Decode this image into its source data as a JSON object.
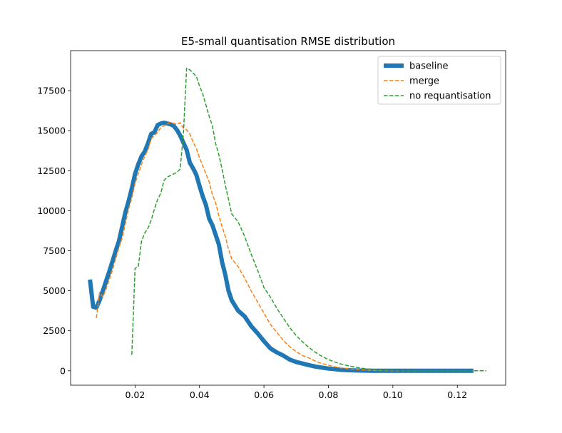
{
  "chart_data": {
    "type": "line",
    "title": "E5-small quantisation RMSE distribution",
    "xlabel": "",
    "ylabel": "",
    "xlim": [
      0.0,
      0.135
    ],
    "ylim": [
      -900,
      20000
    ],
    "xticks": [
      0.02,
      0.04,
      0.06,
      0.08,
      0.1,
      0.12
    ],
    "xtick_labels": [
      "0.02",
      "0.04",
      "0.06",
      "0.08",
      "0.10",
      "0.12"
    ],
    "yticks": [
      0,
      2500,
      5000,
      7500,
      10000,
      12500,
      15000,
      17500
    ],
    "ytick_labels": [
      "0",
      "2500",
      "5000",
      "7500",
      "10000",
      "12500",
      "15000",
      "17500"
    ],
    "grid": false,
    "legend_position": "top-right",
    "series": [
      {
        "name": "baseline",
        "color": "#1f77b4",
        "style": "solid-thick",
        "x": [
          0.006,
          0.007,
          0.008,
          0.009,
          0.01,
          0.011,
          0.012,
          0.013,
          0.014,
          0.015,
          0.016,
          0.017,
          0.018,
          0.019,
          0.02,
          0.021,
          0.022,
          0.023,
          0.024,
          0.025,
          0.026,
          0.027,
          0.028,
          0.029,
          0.03,
          0.031,
          0.032,
          0.033,
          0.034,
          0.035,
          0.036,
          0.037,
          0.038,
          0.039,
          0.04,
          0.041,
          0.042,
          0.043,
          0.044,
          0.045,
          0.046,
          0.047,
          0.048,
          0.049,
          0.05,
          0.052,
          0.054,
          0.056,
          0.058,
          0.06,
          0.062,
          0.064,
          0.066,
          0.068,
          0.07,
          0.072,
          0.074,
          0.076,
          0.078,
          0.08,
          0.082,
          0.084,
          0.086,
          0.088,
          0.09,
          0.092,
          0.094,
          0.096,
          0.098,
          0.1,
          0.104,
          0.108,
          0.112,
          0.116,
          0.12,
          0.125
        ],
        "y": [
          5700,
          4000,
          3950,
          4400,
          5000,
          5600,
          6200,
          6850,
          7500,
          8100,
          9000,
          9900,
          10600,
          11400,
          12300,
          12900,
          13400,
          13700,
          14200,
          14800,
          14900,
          15350,
          15450,
          15500,
          15450,
          15400,
          15300,
          15050,
          14700,
          14250,
          13800,
          13000,
          12650,
          12250,
          11550,
          10900,
          10350,
          9500,
          9100,
          8500,
          7900,
          6800,
          6000,
          5000,
          4400,
          3750,
          3400,
          2800,
          2350,
          1850,
          1400,
          1150,
          950,
          700,
          550,
          450,
          350,
          260,
          200,
          140,
          100,
          60,
          40,
          25,
          15,
          10,
          5,
          3,
          2,
          1,
          1,
          0,
          0,
          0,
          0,
          0
        ]
      },
      {
        "name": "merge",
        "color": "#ff7f0e",
        "style": "dashed",
        "x": [
          0.008,
          0.009,
          0.01,
          0.011,
          0.012,
          0.013,
          0.014,
          0.015,
          0.016,
          0.017,
          0.018,
          0.019,
          0.02,
          0.021,
          0.022,
          0.023,
          0.024,
          0.025,
          0.026,
          0.027,
          0.028,
          0.029,
          0.03,
          0.031,
          0.032,
          0.033,
          0.034,
          0.035,
          0.036,
          0.037,
          0.038,
          0.039,
          0.04,
          0.041,
          0.042,
          0.043,
          0.044,
          0.045,
          0.046,
          0.047,
          0.048,
          0.049,
          0.05,
          0.052,
          0.054,
          0.056,
          0.058,
          0.06,
          0.062,
          0.064,
          0.066,
          0.068,
          0.07,
          0.072,
          0.074,
          0.076,
          0.078,
          0.08,
          0.082,
          0.084,
          0.086,
          0.088,
          0.09,
          0.092,
          0.094,
          0.096,
          0.098,
          0.1,
          0.104,
          0.108,
          0.112,
          0.116,
          0.12,
          0.124,
          0.129
        ],
        "y": [
          3300,
          4900,
          4600,
          5100,
          5700,
          6300,
          7000,
          7700,
          8300,
          9200,
          10100,
          10800,
          11700,
          12300,
          12900,
          13400,
          13800,
          14500,
          14700,
          14900,
          15200,
          15300,
          15450,
          15500,
          15450,
          15400,
          15500,
          15150,
          15050,
          14800,
          14300,
          13900,
          13300,
          12800,
          12300,
          11800,
          11000,
          10500,
          9700,
          9000,
          8400,
          7600,
          7000,
          6500,
          5800,
          5000,
          4300,
          3600,
          2900,
          2400,
          1900,
          1500,
          1200,
          950,
          800,
          600,
          450,
          350,
          250,
          180,
          130,
          90,
          60,
          40,
          25,
          15,
          10,
          5,
          3,
          2,
          1,
          1,
          0,
          0,
          0
        ]
      },
      {
        "name": "no requantisation",
        "color": "#2ca02c",
        "style": "dashed",
        "x": [
          0.019,
          0.02,
          0.021,
          0.022,
          0.023,
          0.024,
          0.025,
          0.026,
          0.027,
          0.028,
          0.029,
          0.03,
          0.031,
          0.032,
          0.033,
          0.034,
          0.035,
          0.036,
          0.037,
          0.038,
          0.039,
          0.04,
          0.041,
          0.042,
          0.043,
          0.044,
          0.045,
          0.046,
          0.047,
          0.048,
          0.049,
          0.05,
          0.052,
          0.054,
          0.056,
          0.058,
          0.06,
          0.062,
          0.064,
          0.066,
          0.068,
          0.07,
          0.072,
          0.074,
          0.076,
          0.078,
          0.08,
          0.082,
          0.084,
          0.086,
          0.088,
          0.09,
          0.092,
          0.094,
          0.096,
          0.098,
          0.1,
          0.104,
          0.108,
          0.112,
          0.116,
          0.12,
          0.125,
          0.129
        ],
        "y": [
          1000,
          6400,
          6500,
          8100,
          8600,
          8900,
          9400,
          10100,
          10700,
          11100,
          11900,
          12100,
          12200,
          12300,
          12400,
          12600,
          14800,
          18900,
          18800,
          18600,
          18400,
          17800,
          17300,
          16600,
          15900,
          15300,
          14200,
          13500,
          12600,
          11600,
          10700,
          9800,
          9300,
          8400,
          7300,
          6300,
          5200,
          4600,
          3900,
          3300,
          2700,
          2200,
          1800,
          1450,
          1150,
          900,
          700,
          550,
          420,
          320,
          240,
          170,
          120,
          80,
          55,
          35,
          20,
          10,
          5,
          3,
          1,
          1,
          0,
          0
        ]
      }
    ]
  }
}
